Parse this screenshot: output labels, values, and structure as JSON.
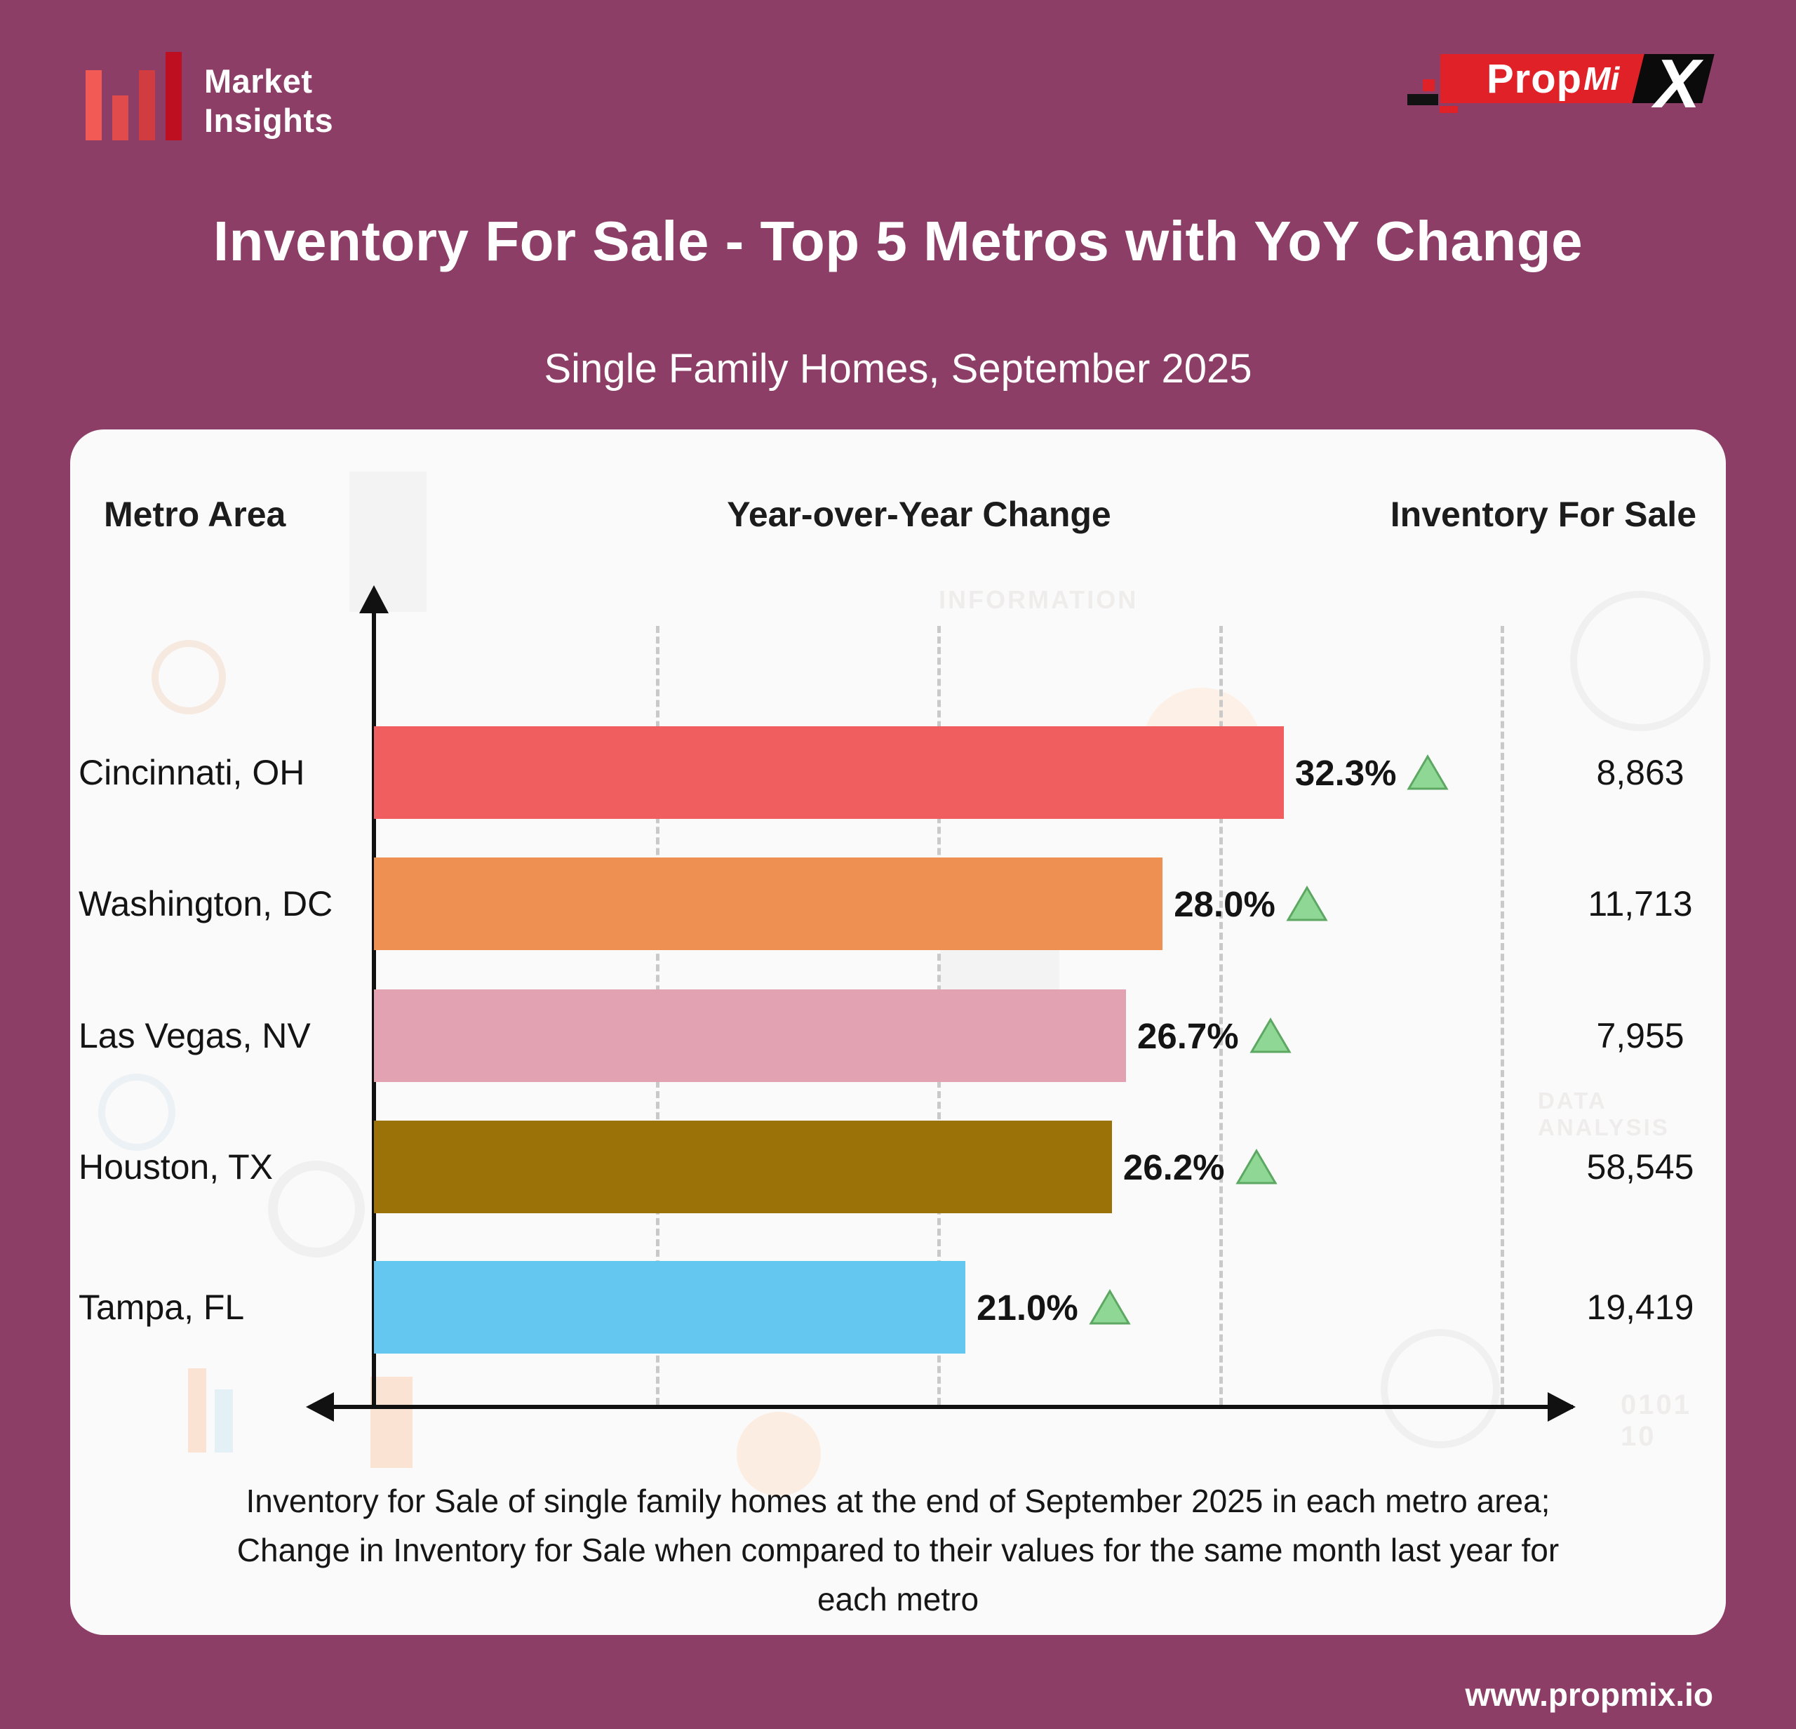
{
  "brand": {
    "market_insights": {
      "line1": "Market",
      "line2": "Insights"
    },
    "propmix": {
      "prop": "Prop",
      "mi": "Mi",
      "x": "X"
    }
  },
  "header": {
    "title": "Inventory For Sale - Top 5 Metros with YoY Change",
    "subtitle": "Single Family Homes, September 2025"
  },
  "columns": {
    "metro": "Metro Area",
    "yoy": "Year-over-Year Change",
    "inventory": "Inventory For Sale"
  },
  "chart_data": {
    "type": "bar",
    "orientation": "horizontal",
    "title": "Inventory For Sale - Top 5 Metros with YoY Change",
    "subtitle": "Single Family Homes, September 2025",
    "categories": [
      "Cincinnati, OH",
      "Washington, DC",
      "Las Vegas, NV",
      "Houston, TX",
      "Tampa, FL"
    ],
    "series": [
      {
        "name": "Year-over-Year Change (%)",
        "values": [
          32.3,
          28.0,
          26.7,
          26.2,
          21.0
        ]
      },
      {
        "name": "Inventory For Sale",
        "values": [
          8863,
          11713,
          7955,
          58545,
          19419
        ]
      }
    ],
    "value_labels": {
      "yoy": [
        "32.3%",
        "28.0%",
        "26.7%",
        "26.2%",
        "21.0%"
      ],
      "inventory": [
        "8,863",
        "11,713",
        "7,955",
        "58,545",
        "19,419"
      ],
      "trend": [
        "up",
        "up",
        "up",
        "up",
        "up"
      ]
    },
    "bar_colors": [
      "#F15E60",
      "#EE9051",
      "#E3A2B1",
      "#9A7208",
      "#64C7F0"
    ],
    "trend_up_fill": "#8FD794",
    "trend_up_stroke": "#5CA863",
    "xlim": [
      0,
      42.5
    ],
    "gridlines": [
      10,
      20,
      30,
      40
    ],
    "grid_style": "dashed",
    "legend": "none",
    "axis_color": "#111111"
  },
  "caption": {
    "line1": "Inventory for Sale of single family homes at the end of September 2025 in each metro area;",
    "line2": "Change in Inventory for Sale when compared to their values for the same month last year for",
    "line3": "each metro"
  },
  "footer": {
    "website": "www.propmix.io"
  },
  "watermark": {
    "information": "INFORMATION",
    "data_analysis": "DATA ANALYSIS",
    "binary": "0101 10"
  },
  "colors": {
    "background": "#8D3E67",
    "card": "#FBFAFA",
    "logo_bar_colors": [
      "#F25B55",
      "#E14B4B",
      "#D13C41",
      "#BD0F1F"
    ],
    "propmix_red": "#E02128",
    "gridline": "#C9C9C9"
  }
}
